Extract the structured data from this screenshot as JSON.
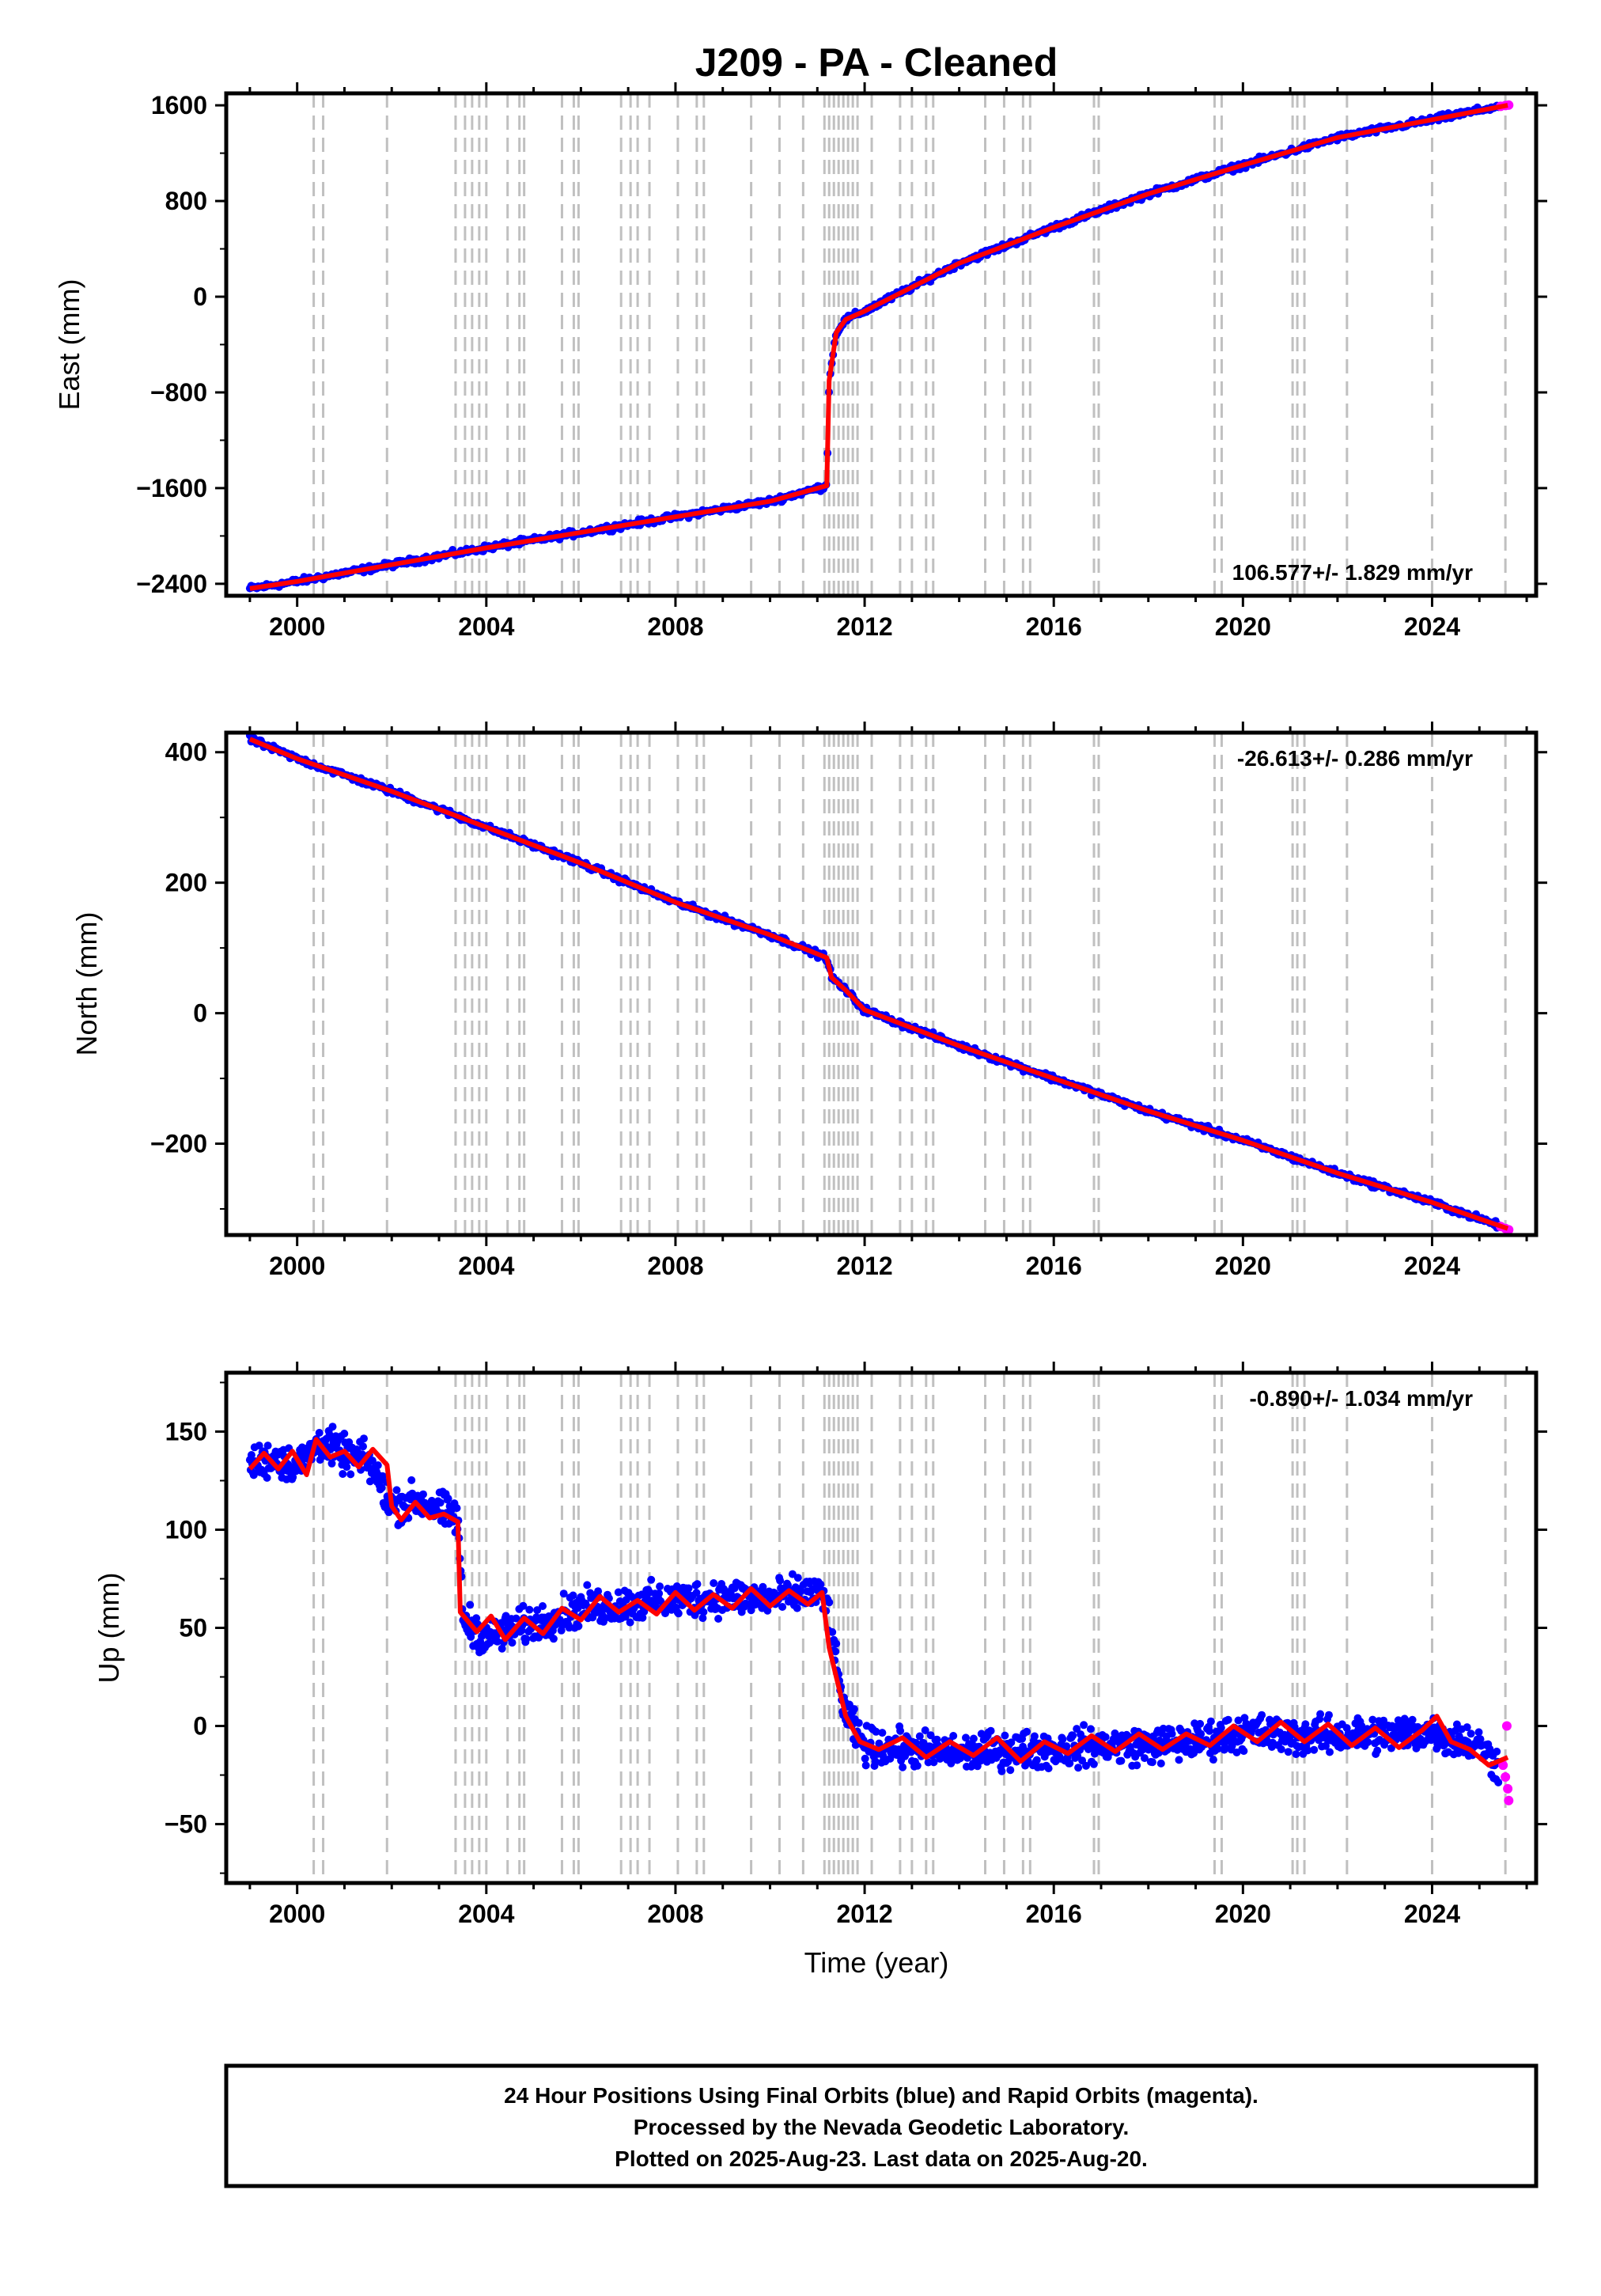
{
  "title": "J209  - PA - Cleaned",
  "xlabel": "Time (year)",
  "footer_lines": [
    "24 Hour Positions Using Final Orbits (blue) and Rapid Orbits (magenta).",
    "Processed by the Nevada Geodetic Laboratory.",
    "Plotted on 2025-Aug-23. Last data on 2025-Aug-20."
  ],
  "colors": {
    "final": "#0000ff",
    "rapid": "#ff00ff",
    "model": "#ff0000",
    "events": "#c0c0c0"
  },
  "chart_data": [
    {
      "type": "scatter",
      "panel": "east",
      "ylabel": "East (mm)",
      "rate_label": "106.577+/- 1.829 mm/yr",
      "xlim": [
        1998.5,
        2026.2
      ],
      "ylim": [
        -2500,
        1700
      ],
      "x_ticks": [
        2000,
        2004,
        2008,
        2012,
        2016,
        2020,
        2024
      ],
      "y_ticks": [
        -2400,
        -1600,
        -800,
        0,
        800,
        1600
      ],
      "y_tick_labels": [
        "−2400",
        "−1600",
        "−800",
        "0",
        "800",
        "1600"
      ],
      "series": [
        {
          "role": "final",
          "x": [
            1999.0,
            2000.0,
            2002.0,
            2004.0,
            2006.0,
            2008.0,
            2010.0,
            2011.2,
            2011.25,
            2011.4,
            2011.6,
            2012.0,
            2014.0,
            2016.0,
            2018.0,
            2020.0,
            2022.0,
            2024.0,
            2025.4
          ],
          "y": [
            -2440,
            -2380,
            -2240,
            -2100,
            -1970,
            -1840,
            -1710,
            -1580,
            -700,
            -300,
            -190,
            -120,
            280,
            580,
            860,
            1100,
            1330,
            1480,
            1590
          ]
        },
        {
          "role": "rapid",
          "x": [
            2025.45,
            2025.55,
            2025.62
          ],
          "y": [
            1592,
            1598,
            1602
          ]
        },
        {
          "role": "model",
          "x": [
            1999.0,
            2000.0,
            2002.0,
            2004.0,
            2006.0,
            2008.0,
            2010.0,
            2011.2,
            2011.25,
            2011.4,
            2011.6,
            2012.0,
            2014.0,
            2016.0,
            2018.0,
            2020.0,
            2022.0,
            2024.0,
            2025.6
          ],
          "y": [
            -2440,
            -2380,
            -2240,
            -2100,
            -1970,
            -1840,
            -1710,
            -1580,
            -700,
            -300,
            -190,
            -120,
            280,
            580,
            860,
            1100,
            1330,
            1480,
            1600
          ]
        }
      ]
    },
    {
      "type": "scatter",
      "panel": "north",
      "ylabel": "North (mm)",
      "rate_label": "-26.613+/- 0.286 mm/yr",
      "xlim": [
        1998.5,
        2026.2
      ],
      "ylim": [
        -340,
        430
      ],
      "x_ticks": [
        2000,
        2004,
        2008,
        2012,
        2016,
        2020,
        2024
      ],
      "y_ticks": [
        -200,
        0,
        200,
        400
      ],
      "y_tick_labels": [
        "−200",
        "0",
        "200",
        "400"
      ],
      "series": [
        {
          "role": "final",
          "x": [
            1999.0,
            2000.0,
            2002.0,
            2004.0,
            2006.0,
            2008.0,
            2010.0,
            2011.2,
            2011.3,
            2011.6,
            2012.0,
            2014.0,
            2016.0,
            2018.0,
            2020.0,
            2022.0,
            2024.0,
            2025.4
          ],
          "y": [
            420,
            390,
            340,
            285,
            230,
            170,
            120,
            85,
            55,
            35,
            5,
            -50,
            -100,
            -150,
            -195,
            -245,
            -290,
            -325
          ]
        },
        {
          "role": "rapid",
          "x": [
            2025.45,
            2025.55,
            2025.62
          ],
          "y": [
            -327,
            -330,
            -332
          ]
        },
        {
          "role": "model",
          "x": [
            1999.0,
            2000.0,
            2002.0,
            2004.0,
            2006.0,
            2008.0,
            2010.0,
            2011.2,
            2011.3,
            2011.6,
            2012.0,
            2014.0,
            2016.0,
            2018.0,
            2020.0,
            2022.0,
            2024.0,
            2025.6
          ],
          "y": [
            420,
            390,
            340,
            285,
            230,
            170,
            120,
            85,
            55,
            35,
            5,
            -50,
            -100,
            -150,
            -195,
            -245,
            -290,
            -330
          ]
        }
      ]
    },
    {
      "type": "scatter",
      "panel": "up",
      "ylabel": "Up (mm)",
      "rate_label": "-0.890+/- 1.034 mm/yr",
      "xlim": [
        1998.5,
        2026.2
      ],
      "ylim": [
        -80,
        180
      ],
      "x_ticks": [
        2000,
        2004,
        2008,
        2012,
        2016,
        2020,
        2024
      ],
      "y_ticks": [
        -50,
        0,
        50,
        100,
        150
      ],
      "y_tick_labels": [
        "−50",
        "0",
        "50",
        "100",
        "150"
      ],
      "series": [
        {
          "role": "final",
          "x": [
            1999.0,
            1999.5,
            2000.0,
            2000.5,
            2001.0,
            2001.5,
            2002.0,
            2002.5,
            2003.0,
            2003.4,
            2003.5,
            2004.0,
            2005.0,
            2006.0,
            2007.0,
            2008.0,
            2009.0,
            2010.0,
            2011.0,
            2011.2,
            2011.4,
            2011.6,
            2012.0,
            2013.0,
            2014.0,
            2015.0,
            2016.0,
            2017.0,
            2018.0,
            2019.0,
            2020.0,
            2021.0,
            2022.0,
            2023.0,
            2024.0,
            2025.0,
            2025.4
          ],
          "y": [
            133,
            137,
            132,
            145,
            138,
            135,
            112,
            115,
            110,
            106,
            55,
            45,
            52,
            60,
            62,
            64,
            66,
            65,
            68,
            62,
            30,
            5,
            -10,
            -12,
            -14,
            -12,
            -12,
            -10,
            -10,
            -8,
            -3,
            -5,
            -5,
            -4,
            -3,
            -10,
            -20
          ]
        },
        {
          "role": "rapid",
          "x": [
            2025.5,
            2025.55,
            2025.6,
            2025.62,
            2025.58
          ],
          "y": [
            -20,
            -26,
            -32,
            -38,
            0
          ]
        },
        {
          "role": "model",
          "x": [
            1999.0,
            1999.3,
            1999.6,
            1999.9,
            2000.2,
            2000.4,
            2000.7,
            2001.0,
            2001.3,
            2001.6,
            2001.9,
            2002.0,
            2002.2,
            2002.5,
            2002.8,
            2003.1,
            2003.4,
            2003.45,
            2003.8,
            2004.1,
            2004.4,
            2004.8,
            2005.2,
            2005.6,
            2006.0,
            2006.4,
            2006.8,
            2007.2,
            2007.6,
            2008.0,
            2008.4,
            2008.8,
            2009.2,
            2009.6,
            2010.0,
            2010.4,
            2010.8,
            2011.1,
            2011.25,
            2011.4,
            2011.6,
            2011.9,
            2012.3,
            2012.8,
            2013.3,
            2013.8,
            2014.3,
            2014.8,
            2015.3,
            2015.8,
            2016.3,
            2016.8,
            2017.3,
            2017.8,
            2018.3,
            2018.8,
            2019.3,
            2019.8,
            2020.3,
            2020.8,
            2021.3,
            2021.8,
            2022.3,
            2022.8,
            2023.3,
            2023.8,
            2024.1,
            2024.4,
            2024.8,
            2025.2,
            2025.6
          ],
          "y": [
            131,
            139,
            131,
            140,
            128,
            146,
            137,
            140,
            132,
            141,
            133,
            112,
            105,
            114,
            106,
            108,
            104,
            58,
            48,
            56,
            44,
            55,
            47,
            60,
            54,
            66,
            58,
            64,
            57,
            68,
            59,
            67,
            60,
            70,
            61,
            69,
            62,
            68,
            40,
            25,
            5,
            -8,
            -12,
            -6,
            -16,
            -8,
            -15,
            -6,
            -18,
            -8,
            -14,
            -5,
            -13,
            -4,
            -12,
            -4,
            -10,
            0,
            -8,
            2,
            -8,
            1,
            -10,
            -1,
            -11,
            -2,
            5,
            -8,
            -12,
            -20,
            -16
          ]
        }
      ]
    }
  ],
  "event_years": [
    2000.35,
    2000.55,
    2001.9,
    2003.35,
    2003.55,
    2003.7,
    2003.85,
    2004.0,
    2004.45,
    2004.7,
    2004.8,
    2005.6,
    2005.85,
    2005.95,
    2006.85,
    2007.05,
    2007.2,
    2007.45,
    2008.05,
    2008.45,
    2008.6,
    2009.6,
    2010.2,
    2010.7,
    2011.15,
    2011.25,
    2011.35,
    2011.45,
    2011.55,
    2011.65,
    2011.75,
    2011.85,
    2012.15,
    2012.75,
    2013.0,
    2013.3,
    2013.45,
    2014.55,
    2014.95,
    2015.35,
    2015.5,
    2016.85,
    2016.95,
    2019.4,
    2019.55,
    2021.05,
    2021.15,
    2021.3,
    2022.2,
    2024.0,
    2025.55
  ]
}
